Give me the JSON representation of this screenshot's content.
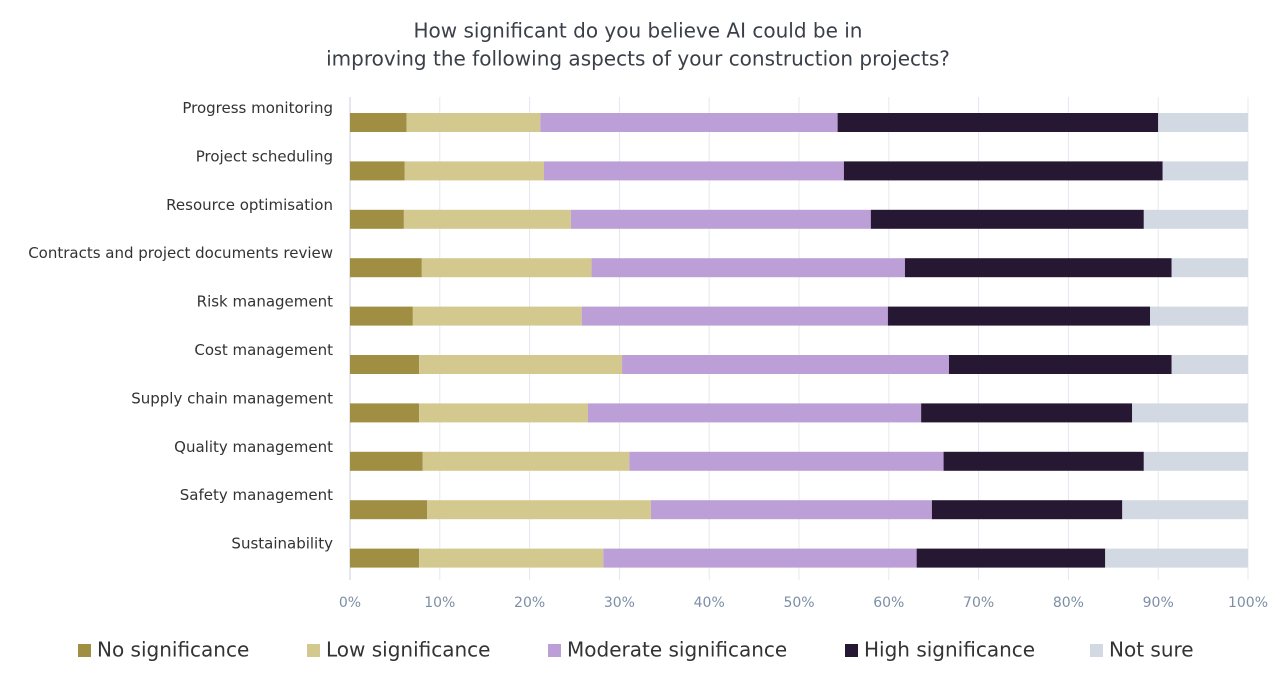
{
  "chart_data": {
    "type": "stacked-barh",
    "title": [
      "How significant do you believe AI could be in",
      "improving the following aspects of your construction projects?"
    ],
    "categories": [
      "Progress monitoring",
      "Project scheduling",
      "Resource optimisation",
      "Contracts and project documents review",
      "Risk management",
      "Cost management",
      "Supply chain management",
      "Quality management",
      "Safety management",
      "Sustainability"
    ],
    "series": [
      {
        "name": "No significance",
        "color": "#a08e42",
        "values": [
          6.3,
          6.1,
          6.0,
          8.0,
          7.0,
          7.7,
          7.7,
          8.1,
          8.6,
          7.7
        ]
      },
      {
        "name": "Low significance",
        "color": "#d3c98f",
        "values": [
          14.9,
          15.5,
          18.6,
          18.9,
          18.8,
          22.6,
          18.8,
          23.0,
          24.9,
          20.5
        ]
      },
      {
        "name": "Moderate significance",
        "color": "#bb9fd6",
        "values": [
          33.1,
          33.4,
          33.4,
          34.9,
          34.1,
          36.4,
          37.1,
          35.0,
          31.3,
          34.9
        ]
      },
      {
        "name": "High significance",
        "color": "#261833",
        "values": [
          35.7,
          35.5,
          30.4,
          29.7,
          29.2,
          24.8,
          23.5,
          22.3,
          21.2,
          21.0
        ]
      },
      {
        "name": "Not sure",
        "color": "#d3d9e3",
        "values": [
          10.0,
          9.5,
          11.6,
          8.5,
          10.9,
          8.5,
          12.9,
          11.6,
          14.0,
          15.9
        ]
      }
    ],
    "xlim": [
      0,
      100
    ],
    "xticks": [
      {
        "value": 0,
        "label": "0%"
      },
      {
        "value": 10,
        "label": "10%"
      },
      {
        "value": 20,
        "label": "20%"
      },
      {
        "value": 30,
        "label": "30%"
      },
      {
        "value": 40,
        "label": "40%"
      },
      {
        "value": 50,
        "label": "50%"
      },
      {
        "value": 60,
        "label": "60%"
      },
      {
        "value": 70,
        "label": "70%"
      },
      {
        "value": 80,
        "label": "80%"
      },
      {
        "value": 90,
        "label": "90%"
      },
      {
        "value": 100,
        "label": "100%"
      }
    ],
    "grid": true
  }
}
